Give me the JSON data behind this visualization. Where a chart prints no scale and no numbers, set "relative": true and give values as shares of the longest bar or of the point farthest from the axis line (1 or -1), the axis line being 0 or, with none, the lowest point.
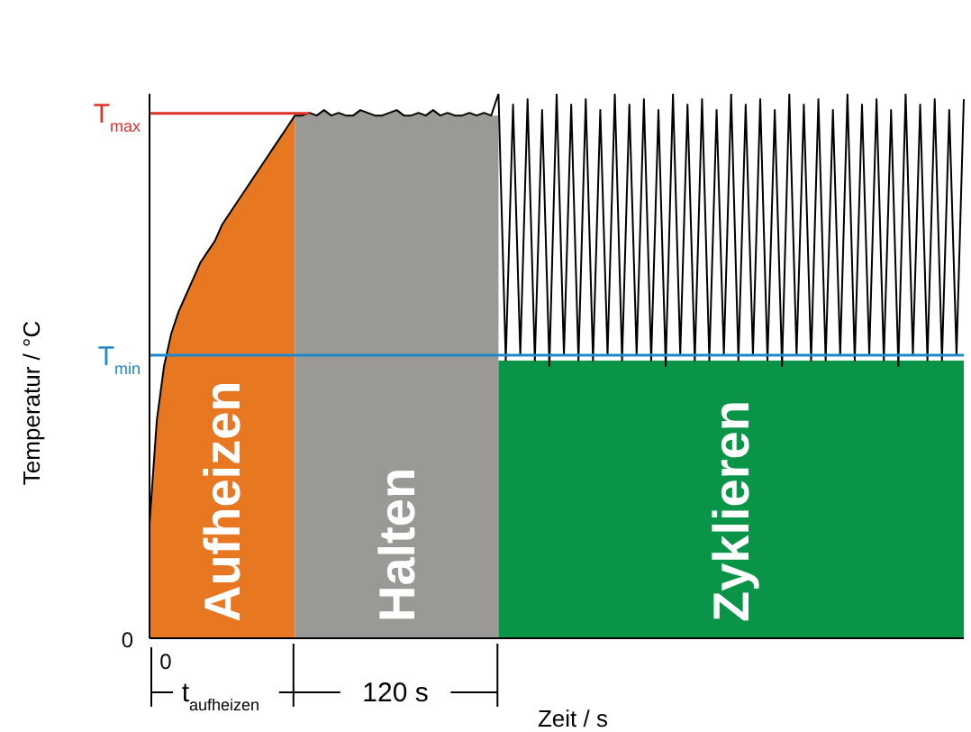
{
  "chart_data": {
    "type": "line",
    "relative": true,
    "xlabel": "Zeit / s",
    "ylabel": "Temperatur / °C",
    "categories": [
      null,
      null,
      null,
      null,
      null,
      null,
      null,
      null,
      null,
      null,
      null,
      null,
      null,
      null,
      null,
      null,
      null,
      null,
      null,
      null,
      null,
      null,
      null,
      null,
      null,
      null,
      null,
      null,
      null,
      null,
      null,
      null,
      null,
      null,
      null,
      null,
      null,
      null,
      null,
      null,
      null,
      null,
      null,
      null,
      null,
      null,
      null,
      null,
      null,
      null,
      null,
      null,
      null,
      null,
      null,
      null,
      null,
      null,
      null,
      null,
      null,
      null,
      null,
      null,
      null,
      null,
      null,
      null,
      null,
      null,
      null,
      null,
      null,
      null,
      null,
      null,
      null,
      null,
      null,
      null,
      null,
      null,
      null,
      null,
      null,
      null,
      null,
      null,
      null,
      null,
      null,
      null,
      null,
      null,
      null,
      null,
      null,
      null,
      null,
      null,
      null,
      null,
      null,
      null,
      null,
      null,
      null,
      null,
      null,
      null,
      null,
      null,
      null
    ],
    "series": [
      {
        "type": "area",
        "name": "Aufheizen",
        "color": "#e87722",
        "values": [
          0.21,
          0.4,
          0.5,
          0.56,
          0.6,
          0.63,
          0.66,
          0.69,
          0.71,
          0.73,
          0.76,
          0.78,
          0.8,
          0.82,
          0.84,
          0.86,
          0.88,
          0.9,
          0.92,
          0.94,
          0.96,
          null,
          null,
          null,
          null,
          null,
          null,
          null,
          null,
          null,
          null,
          null,
          null,
          null,
          null,
          null,
          null,
          null,
          null,
          null,
          null,
          null,
          null,
          null,
          null,
          null,
          null,
          null,
          null,
          null,
          null,
          null,
          null,
          null,
          null,
          null,
          null,
          null,
          null,
          null,
          null,
          null,
          null,
          null,
          null,
          null,
          null,
          null,
          null,
          null,
          null,
          null,
          null,
          null,
          null,
          null,
          null,
          null,
          null,
          null,
          null,
          null,
          null,
          null,
          null,
          null,
          null,
          null,
          null,
          null,
          null,
          null,
          null,
          null,
          null,
          null,
          null,
          null,
          null,
          null,
          null,
          null,
          null,
          null,
          null,
          null,
          null,
          null,
          null,
          null,
          null,
          null,
          null
        ]
      },
      {
        "type": "area",
        "name": "Halten",
        "color": "#9a9996",
        "values": [
          null,
          null,
          null,
          null,
          null,
          null,
          null,
          null,
          null,
          null,
          null,
          null,
          null,
          null,
          null,
          null,
          null,
          null,
          null,
          null,
          0.96,
          0.96,
          0.965,
          0.96,
          0.97,
          0.96,
          0.965,
          0.96,
          0.96,
          0.97,
          0.965,
          0.96,
          0.96,
          0.965,
          0.97,
          0.96,
          0.96,
          0.965,
          0.96,
          0.97,
          0.96,
          0.965,
          0.96,
          0.96,
          0.965,
          0.96,
          0.965,
          0.96,
          0.96,
          null,
          null,
          null,
          null,
          null,
          null,
          null,
          null,
          null,
          null,
          null,
          null,
          null,
          null,
          null,
          null,
          null,
          null,
          null,
          null,
          null,
          null,
          null,
          null,
          null,
          null,
          null,
          null,
          null,
          null,
          null,
          null,
          null,
          null,
          null,
          null,
          null,
          null,
          null,
          null,
          null,
          null,
          null,
          null,
          null,
          null,
          null,
          null,
          null,
          null,
          null,
          null,
          null,
          null,
          null,
          null,
          null,
          null,
          null,
          null,
          null,
          null,
          null,
          null
        ]
      },
      {
        "type": "area",
        "name": "Zyklieren",
        "color": "#0a9447",
        "values": [
          null,
          null,
          null,
          null,
          null,
          null,
          null,
          null,
          null,
          null,
          null,
          null,
          null,
          null,
          null,
          null,
          null,
          null,
          null,
          null,
          null,
          null,
          null,
          null,
          null,
          null,
          null,
          null,
          null,
          null,
          null,
          null,
          null,
          null,
          null,
          null,
          null,
          null,
          null,
          null,
          null,
          null,
          null,
          null,
          null,
          null,
          null,
          null,
          0.51,
          0.51,
          0.51,
          0.51,
          0.51,
          0.51,
          0.51,
          0.51,
          0.51,
          0.51,
          0.51,
          0.51,
          0.51,
          0.51,
          0.51,
          0.51,
          0.51,
          0.51,
          0.51,
          0.51,
          0.51,
          0.51,
          0.51,
          0.51,
          0.51,
          0.51,
          0.51,
          0.51,
          0.51,
          0.51,
          0.51,
          0.51,
          0.51,
          0.51,
          0.51,
          0.51,
          0.51,
          0.51,
          0.51,
          0.51,
          0.51,
          0.51,
          0.51,
          0.51,
          0.51,
          0.51,
          0.51,
          0.51,
          0.51,
          0.51,
          0.51,
          0.51,
          0.51,
          0.51,
          0.51,
          0.51,
          0.51,
          0.51,
          0.51,
          0.51,
          0.51,
          0.51,
          0.51,
          0.51,
          0.51
        ]
      },
      {
        "color": "#000000",
        "values": [
          0.21,
          0.4,
          0.5,
          0.56,
          0.6,
          0.63,
          0.66,
          0.69,
          0.71,
          0.73,
          0.76,
          0.78,
          0.8,
          0.82,
          0.84,
          0.86,
          0.88,
          0.9,
          0.92,
          0.94,
          0.96,
          0.96,
          0.965,
          0.96,
          0.97,
          0.96,
          0.965,
          0.96,
          0.96,
          0.97,
          0.965,
          0.96,
          0.96,
          0.965,
          0.97,
          0.96,
          0.96,
          0.965,
          0.96,
          0.97,
          0.96,
          0.965,
          0.96,
          0.96,
          0.965,
          0.96,
          0.965,
          0.96,
          1,
          0.51,
          0.98,
          0.52,
          0.99,
          0.51,
          0.97,
          0.5,
          1,
          0.52,
          0.98,
          0.51,
          0.99,
          0.51,
          0.97,
          0.52,
          1,
          0.51,
          0.98,
          0.52,
          0.99,
          0.51,
          0.97,
          0.5,
          1,
          0.52,
          0.98,
          0.51,
          0.99,
          0.51,
          0.97,
          0.52,
          1,
          0.51,
          0.98,
          0.52,
          0.99,
          0.51,
          0.97,
          0.5,
          1,
          0.52,
          0.98,
          0.51,
          0.99,
          0.51,
          0.97,
          0.52,
          1,
          0.51,
          0.98,
          0.52,
          0.99,
          0.51,
          0.97,
          0.5,
          1,
          0.52,
          0.98,
          0.51,
          0.99,
          0.51,
          0.97,
          0.52,
          0.99
        ]
      }
    ],
    "ref_lines": [
      {
        "axis": "y",
        "value": 0.964,
        "label": "T$_{max}$",
        "color": "#e0302a"
      },
      {
        "axis": "y",
        "value": 0.52,
        "label": "T$_{min}$",
        "color": "#1e88c8"
      }
    ],
    "annotations": [
      "0",
      "0",
      "t$_{aufheizen}$",
      "120 s"
    ]
  }
}
